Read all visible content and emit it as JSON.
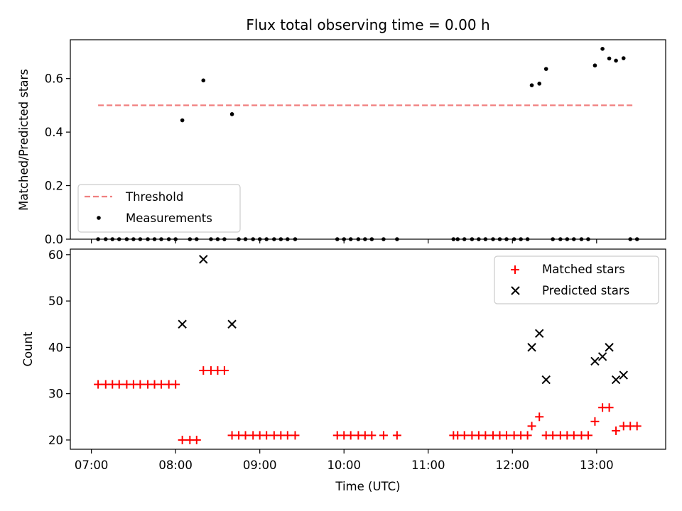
{
  "chart_data": [
    {
      "type": "scatter",
      "title": "Flux total observing time = 0.00 h",
      "xlabel": "",
      "ylabel": "Matched/Predicted stars",
      "xlim": [
        6.75,
        13.82
      ],
      "ylim": [
        0,
        0.745
      ],
      "yticks": [
        0.0,
        0.2,
        0.4,
        0.6
      ],
      "yticklabels": [
        "0.0",
        "0.2",
        "0.4",
        "0.6"
      ],
      "xticks": [
        7,
        8,
        9,
        10,
        11,
        12,
        13
      ],
      "threshold": {
        "value": 0.5,
        "x_start": 7.08,
        "x_end": 13.45,
        "color": "#f08080"
      },
      "legend": {
        "position": "lower-left",
        "entries": [
          "Threshold",
          "Measurements"
        ]
      },
      "series": [
        {
          "name": "Measurements",
          "color": "#000000",
          "x": [
            7.08,
            7.17,
            7.25,
            7.33,
            7.42,
            7.5,
            7.58,
            7.67,
            7.75,
            7.83,
            7.92,
            8.0,
            8.08,
            8.17,
            8.25,
            8.33,
            8.42,
            8.5,
            8.58,
            8.67,
            8.75,
            8.83,
            8.92,
            9.0,
            9.08,
            9.17,
            9.25,
            9.33,
            9.42,
            9.92,
            10.0,
            10.08,
            10.17,
            10.25,
            10.33,
            10.47,
            10.63,
            11.3,
            11.35,
            11.43,
            11.52,
            11.6,
            11.68,
            11.77,
            11.85,
            11.93,
            12.02,
            12.1,
            12.18,
            12.23,
            12.32,
            12.4,
            12.48,
            12.57,
            12.65,
            12.73,
            12.82,
            12.9,
            12.98,
            13.07,
            13.15,
            13.23,
            13.32,
            13.4,
            13.48
          ],
          "y": [
            0,
            0,
            0,
            0,
            0,
            0,
            0,
            0,
            0,
            0,
            0,
            0,
            0.444,
            0,
            0,
            0.593,
            0,
            0,
            0,
            0.467,
            0,
            0,
            0,
            0,
            0,
            0,
            0,
            0,
            0,
            0,
            0,
            0,
            0,
            0,
            0,
            0,
            0,
            0,
            0,
            0,
            0,
            0,
            0,
            0,
            0,
            0,
            0,
            0,
            0,
            0.575,
            0.581,
            0.636,
            0,
            0,
            0,
            0,
            0,
            0,
            0.649,
            0.711,
            0.675,
            0.667,
            0.676,
            0,
            0
          ]
        }
      ]
    },
    {
      "type": "scatter",
      "title": "",
      "xlabel": "Time (UTC)",
      "ylabel": "Count",
      "xlim": [
        6.75,
        13.82
      ],
      "ylim": [
        18,
        61.2
      ],
      "yticks": [
        20,
        30,
        40,
        50,
        60
      ],
      "yticklabels": [
        "20",
        "30",
        "40",
        "50",
        "60"
      ],
      "xticks": [
        7,
        8,
        9,
        10,
        11,
        12,
        13
      ],
      "xticklabels": [
        "07:00",
        "08:00",
        "09:00",
        "10:00",
        "11:00",
        "12:00",
        "13:00"
      ],
      "legend": {
        "position": "top-right",
        "entries": [
          "Matched stars",
          "Predicted stars"
        ]
      },
      "series": [
        {
          "name": "Matched stars",
          "marker": "plus",
          "color": "#ff0000",
          "x": [
            7.08,
            7.17,
            7.25,
            7.33,
            7.42,
            7.5,
            7.58,
            7.67,
            7.75,
            7.83,
            7.92,
            8.0,
            8.08,
            8.17,
            8.25,
            8.33,
            8.42,
            8.5,
            8.58,
            8.67,
            8.75,
            8.83,
            8.92,
            9.0,
            9.08,
            9.17,
            9.25,
            9.33,
            9.42,
            9.92,
            10.0,
            10.08,
            10.17,
            10.25,
            10.33,
            10.47,
            10.63,
            11.3,
            11.35,
            11.43,
            11.52,
            11.6,
            11.68,
            11.77,
            11.85,
            11.93,
            12.02,
            12.1,
            12.18,
            12.23,
            12.32,
            12.4,
            12.48,
            12.57,
            12.65,
            12.73,
            12.82,
            12.9,
            12.98,
            13.07,
            13.15,
            13.23,
            13.32,
            13.4,
            13.48
          ],
          "y": [
            32,
            32,
            32,
            32,
            32,
            32,
            32,
            32,
            32,
            32,
            32,
            32,
            20,
            20,
            20,
            35,
            35,
            35,
            35,
            21,
            21,
            21,
            21,
            21,
            21,
            21,
            21,
            21,
            21,
            21,
            21,
            21,
            21,
            21,
            21,
            21,
            21,
            21,
            21,
            21,
            21,
            21,
            21,
            21,
            21,
            21,
            21,
            21,
            21,
            23,
            25,
            21,
            21,
            21,
            21,
            21,
            21,
            21,
            24,
            27,
            27,
            22,
            23,
            23,
            23
          ]
        },
        {
          "name": "Predicted stars",
          "marker": "x",
          "color": "#000000",
          "x": [
            8.08,
            8.33,
            8.67,
            12.23,
            12.32,
            12.4,
            12.98,
            13.07,
            13.15,
            13.23,
            13.32
          ],
          "y": [
            45,
            59,
            45,
            40,
            43,
            33,
            37,
            38,
            40,
            33,
            34
          ]
        }
      ]
    }
  ]
}
